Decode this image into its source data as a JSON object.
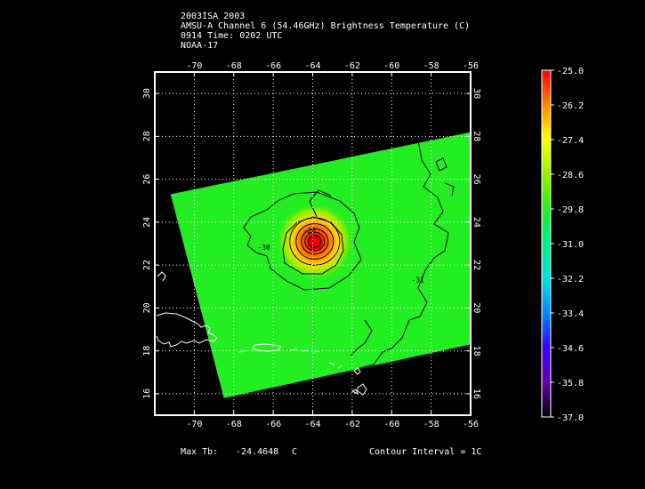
{
  "header": {
    "line1": "2003ISA 2003",
    "line2": "AMSU-A Channel 6 (54.46GHz) Brightness Temperature (C)",
    "line3": "0914 Time: 0202 UTC",
    "line4": "NOAA-17"
  },
  "footer": {
    "max_label": "Max Tb:",
    "max_value": "-24.4648",
    "max_unit": "C",
    "contour_label": "Contour Interval = 1C"
  },
  "chart_data": {
    "type": "heatmap",
    "x_ticks": [
      "-70",
      "-68",
      "-66",
      "-64",
      "-62",
      "-60",
      "-58",
      "-56"
    ],
    "y_ticks": [
      "16",
      "18",
      "20",
      "22",
      "24",
      "26",
      "28",
      "30"
    ],
    "xlim": [
      -72,
      -56
    ],
    "ylim": [
      15,
      31
    ],
    "grid": true,
    "colorbar": {
      "ticks": [
        "-25.0",
        "-26.2",
        "-27.4",
        "-28.6",
        "-29.8",
        "-31.0",
        "-32.2",
        "-33.4",
        "-34.6",
        "-35.8",
        "-37.0"
      ],
      "range": [
        -37.0,
        -25.0
      ],
      "colors": [
        "#000000",
        "#6600aa",
        "#3300ff",
        "#0088ff",
        "#00dddd",
        "#00ee88",
        "#22ee22",
        "#99ee00",
        "#ffff00",
        "#ff8800",
        "#ff0000"
      ]
    },
    "swath_corners_lonlat": [
      [
        -71.2,
        25.3
      ],
      [
        -56.0,
        28.2
      ],
      [
        -56.0,
        18.3
      ],
      [
        -68.5,
        15.8
      ]
    ],
    "background_value": -29.9,
    "warm_core": {
      "lon": -63.9,
      "lat": 23.1,
      "max": -24.4648
    },
    "contour_labels": [
      {
        "text": "-30",
        "lon": -66.8,
        "lat": 22.7
      },
      {
        "text": "-31",
        "lon": -59.0,
        "lat": 21.2
      },
      {
        "text": "-26",
        "lon": -64.5,
        "lat": 23.5
      }
    ]
  }
}
